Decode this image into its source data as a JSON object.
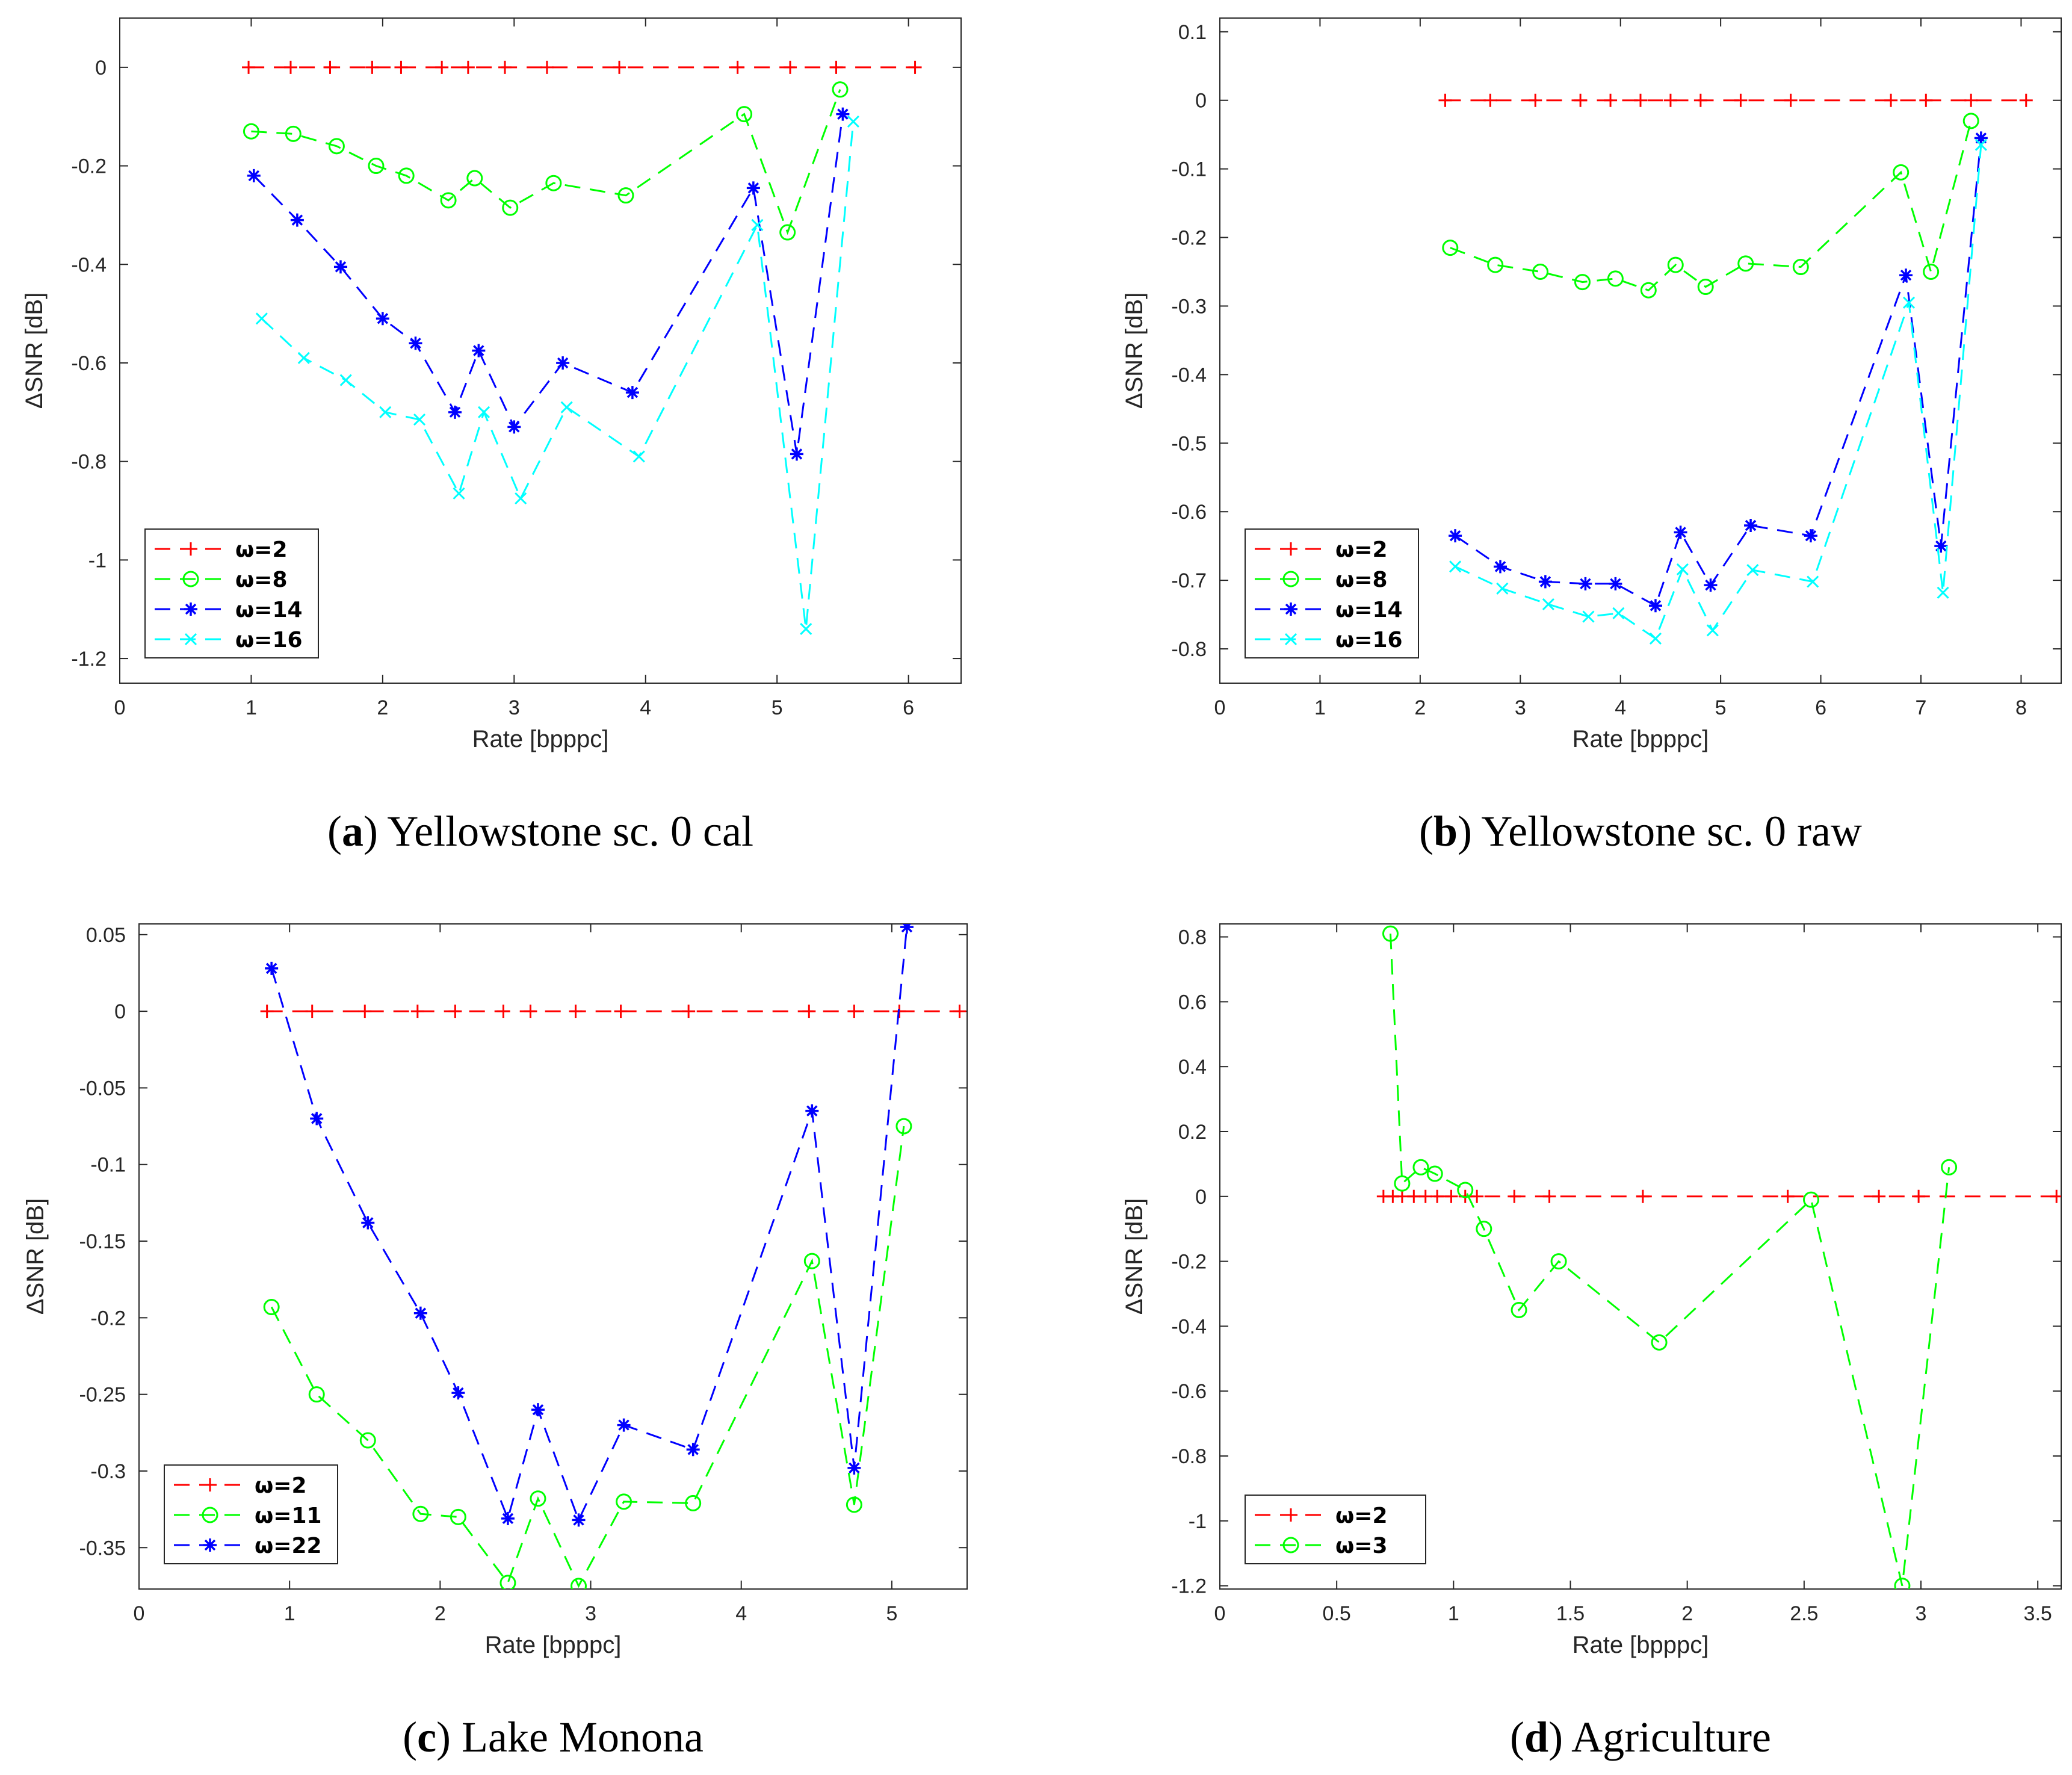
{
  "chart_data": [
    {
      "type": "line",
      "caption_label": "a",
      "caption_text": "Yellowstone sc. 0 cal",
      "xlabel": "Rate [bpppc]",
      "ylabel": "ΔSNR [dB]",
      "xlim": [
        0,
        6.4
      ],
      "ylim": [
        -1.25,
        0.1
      ],
      "xticks": [
        0,
        1,
        2,
        3,
        4,
        5,
        6
      ],
      "yticks": [
        0,
        -0.2,
        -0.4,
        -0.6,
        -0.8,
        -1,
        -1.2
      ],
      "legend": "bottom-left",
      "series": [
        {
          "name": "ω=2",
          "color": "#ff0000",
          "marker": "plus",
          "x": [
            0.98,
            1.3,
            1.6,
            1.92,
            2.14,
            2.45,
            2.65,
            2.93,
            3.25,
            3.8,
            4.7,
            5.1,
            5.45,
            6.05
          ],
          "y": [
            0,
            0,
            0,
            0,
            0,
            0,
            0,
            0,
            0,
            0,
            0,
            0,
            0,
            0
          ]
        },
        {
          "name": "ω=8",
          "color": "#00ff00",
          "marker": "circle",
          "x": [
            1.0,
            1.32,
            1.65,
            1.95,
            2.18,
            2.5,
            2.7,
            2.97,
            3.3,
            3.85,
            4.75,
            5.08,
            5.48
          ],
          "y": [
            -0.13,
            -0.135,
            -0.16,
            -0.2,
            -0.22,
            -0.27,
            -0.225,
            -0.285,
            -0.235,
            -0.26,
            -0.095,
            -0.335,
            -0.045
          ]
        },
        {
          "name": "ω=14",
          "color": "#0000ff",
          "marker": "star",
          "x": [
            1.02,
            1.35,
            1.68,
            2.0,
            2.25,
            2.55,
            2.73,
            3.0,
            3.37,
            3.9,
            4.82,
            5.15,
            5.5
          ],
          "y": [
            -0.22,
            -0.31,
            -0.405,
            -0.51,
            -0.56,
            -0.7,
            -0.575,
            -0.73,
            -0.6,
            -0.66,
            -0.245,
            -0.785,
            -0.095
          ]
        },
        {
          "name": "ω=16",
          "color": "#00ffff",
          "marker": "x",
          "x": [
            1.08,
            1.4,
            1.72,
            2.02,
            2.28,
            2.58,
            2.77,
            3.05,
            3.4,
            3.95,
            4.85,
            5.22,
            5.58
          ],
          "y": [
            -0.51,
            -0.59,
            -0.635,
            -0.7,
            -0.715,
            -0.865,
            -0.7,
            -0.875,
            -0.69,
            -0.79,
            -0.32,
            -1.14,
            -0.11
          ]
        }
      ]
    },
    {
      "type": "line",
      "caption_label": "b",
      "caption_text": "Yellowstone sc. 0 raw",
      "xlabel": "Rate [bpppc]",
      "ylabel": "ΔSNR [dB]",
      "xlim": [
        0,
        8.4
      ],
      "ylim": [
        -0.85,
        0.12
      ],
      "xticks": [
        0,
        1,
        2,
        3,
        4,
        5,
        6,
        7,
        8
      ],
      "yticks": [
        0.1,
        0,
        -0.1,
        -0.2,
        -0.3,
        -0.4,
        -0.5,
        -0.6,
        -0.7,
        -0.8
      ],
      "legend": "bottom-left",
      "series": [
        {
          "name": "ω=2",
          "color": "#ff0000",
          "marker": "plus",
          "x": [
            2.25,
            2.7,
            3.15,
            3.6,
            3.9,
            4.2,
            4.5,
            4.8,
            5.2,
            5.7,
            6.7,
            7.05,
            7.5,
            8.05
          ],
          "y": [
            0,
            0,
            0,
            0,
            0,
            0,
            0,
            0,
            0,
            0,
            0,
            0,
            0,
            0
          ]
        },
        {
          "name": "ω=8",
          "color": "#00ff00",
          "marker": "circle",
          "x": [
            2.3,
            2.75,
            3.2,
            3.62,
            3.95,
            4.28,
            4.55,
            4.85,
            5.25,
            5.8,
            6.8,
            7.1,
            7.5
          ],
          "y": [
            -0.215,
            -0.24,
            -0.25,
            -0.265,
            -0.26,
            -0.277,
            -0.24,
            -0.272,
            -0.238,
            -0.243,
            -0.105,
            -0.25,
            -0.03
          ]
        },
        {
          "name": "ω=14",
          "color": "#0000ff",
          "marker": "star",
          "x": [
            2.35,
            2.8,
            3.25,
            3.65,
            3.95,
            4.35,
            4.6,
            4.9,
            5.3,
            5.9,
            6.85,
            7.2,
            7.6
          ],
          "y": [
            -0.635,
            -0.68,
            -0.702,
            -0.705,
            -0.705,
            -0.737,
            -0.63,
            -0.707,
            -0.62,
            -0.635,
            -0.255,
            -0.65,
            -0.055
          ]
        },
        {
          "name": "ω=16",
          "color": "#00ffff",
          "marker": "x",
          "x": [
            2.35,
            2.82,
            3.28,
            3.68,
            3.98,
            4.35,
            4.62,
            4.92,
            5.32,
            5.92,
            6.88,
            7.22,
            7.6
          ],
          "y": [
            -0.68,
            -0.712,
            -0.735,
            -0.753,
            -0.748,
            -0.785,
            -0.684,
            -0.773,
            -0.685,
            -0.702,
            -0.295,
            -0.718,
            -0.065
          ]
        }
      ]
    },
    {
      "type": "line",
      "caption_label": "c",
      "caption_text": "Lake Monona",
      "xlabel": "Rate [bpppc]",
      "ylabel": "ΔSNR [dB]",
      "xlim": [
        0,
        5.5
      ],
      "ylim": [
        -0.377,
        0.057
      ],
      "xticks": [
        0,
        1,
        2,
        3,
        4,
        5
      ],
      "yticks": [
        0.05,
        0,
        -0.05,
        -0.1,
        -0.15,
        -0.2,
        -0.25,
        -0.3,
        -0.35
      ],
      "legend": "bottom-left",
      "series": [
        {
          "name": "ω=2",
          "color": "#ff0000",
          "marker": "plus",
          "x": [
            0.85,
            1.15,
            1.5,
            1.85,
            2.1,
            2.42,
            2.6,
            2.9,
            3.2,
            3.65,
            4.45,
            4.75,
            5.05,
            5.45
          ],
          "y": [
            0,
            0,
            0,
            0,
            0,
            0,
            0,
            0,
            0,
            0,
            0,
            0,
            0,
            0
          ]
        },
        {
          "name": "ω=11",
          "color": "#00ff00",
          "marker": "circle",
          "x": [
            0.88,
            1.18,
            1.52,
            1.87,
            2.12,
            2.45,
            2.65,
            2.92,
            3.22,
            3.68,
            4.47,
            4.75,
            5.08
          ],
          "y": [
            -0.193,
            -0.25,
            -0.28,
            -0.328,
            -0.33,
            -0.373,
            -0.318,
            -0.375,
            -0.32,
            -0.321,
            -0.163,
            -0.322,
            -0.075
          ]
        },
        {
          "name": "ω=22",
          "color": "#0000ff",
          "marker": "star",
          "x": [
            0.88,
            1.18,
            1.52,
            1.87,
            2.12,
            2.45,
            2.65,
            2.92,
            3.22,
            3.68,
            4.47,
            4.75,
            5.1
          ],
          "y": [
            0.028,
            -0.07,
            -0.138,
            -0.197,
            -0.249,
            -0.331,
            -0.26,
            -0.332,
            -0.27,
            -0.286,
            -0.065,
            -0.298,
            0.055
          ]
        }
      ]
    },
    {
      "type": "line",
      "caption_label": "d",
      "caption_text": "Agriculture",
      "xlabel": "Rate [bpppc]",
      "ylabel": "ΔSNR [dB]",
      "xlim": [
        0,
        3.6
      ],
      "ylim": [
        -1.21,
        0.84
      ],
      "xticks": [
        0,
        0.5,
        1,
        1.5,
        2,
        2.5,
        3,
        3.5
      ],
      "yticks": [
        0.8,
        0.6,
        0.4,
        0.2,
        0,
        -0.2,
        -0.4,
        -0.6,
        -0.8,
        -1,
        -1.2
      ],
      "legend": "bottom-left",
      "series": [
        {
          "name": "ω=2",
          "color": "#ff0000",
          "marker": "plus",
          "x": [
            0.7,
            0.74,
            0.78,
            0.83,
            0.88,
            0.93,
            0.99,
            1.05,
            1.1,
            1.26,
            1.41,
            1.81,
            2.43,
            2.82,
            2.99,
            3.58
          ],
          "y": [
            0,
            0,
            0,
            0,
            0,
            0,
            0,
            0,
            0,
            0,
            0,
            0,
            0,
            0,
            0,
            0
          ]
        },
        {
          "name": "ω=3",
          "color": "#00ff00",
          "marker": "circle",
          "x": [
            0.73,
            0.78,
            0.86,
            0.92,
            1.05,
            1.13,
            1.28,
            1.45,
            1.88,
            2.53,
            2.92,
            3.12
          ],
          "y": [
            0.81,
            0.04,
            0.09,
            0.07,
            0.02,
            -0.1,
            -0.35,
            -0.2,
            -0.45,
            -0.01,
            -1.2,
            0.09
          ]
        }
      ]
    }
  ]
}
